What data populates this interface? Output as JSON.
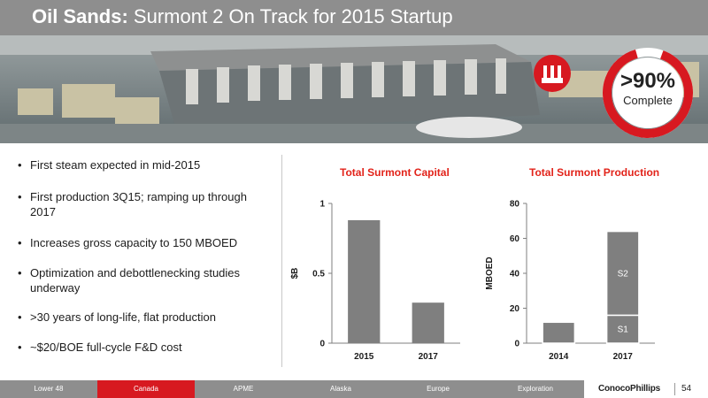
{
  "title": {
    "bold": "Oil Sands:",
    "rest": " Surmont 2 On Track for 2015 Startup"
  },
  "status": {
    "percent": ">90%",
    "label": "Complete",
    "fraction": 0.9
  },
  "bullets": [
    "First steam expected in mid-2015",
    "First production 3Q15; ramping up through 2017",
    "Increases gross capacity to 150 MBOED",
    "Optimization and debottlenecking studies underway",
    " >30 years of long-life, flat production",
    "~$20/BOE full-cycle F&D cost"
  ],
  "chart_data": [
    {
      "type": "bar",
      "title": "Total Surmont Capital",
      "ylabel": "$B",
      "categories": [
        "2015",
        "2017"
      ],
      "values": [
        0.88,
        0.29
      ],
      "ylim": [
        0,
        1
      ],
      "yticks": [
        "0",
        "0.5",
        "1"
      ],
      "ytick_values": [
        0,
        0.5,
        1
      ],
      "color": "#7f7f7f"
    },
    {
      "type": "bar",
      "title": "Total Surmont Production",
      "ylabel": "MBOED",
      "categories": [
        "2014",
        "2017"
      ],
      "series": [
        {
          "name": "S1",
          "values": [
            12,
            16
          ]
        },
        {
          "name": "S2",
          "values": [
            0,
            48
          ]
        }
      ],
      "ylim": [
        0,
        80
      ],
      "yticks": [
        "0",
        "20",
        "40",
        "60",
        "80"
      ],
      "ytick_values": [
        0,
        20,
        40,
        60,
        80
      ],
      "color": "#7f7f7f"
    }
  ],
  "footer": {
    "nav": [
      "Lower 48",
      "Canada",
      "APME",
      "Alaska",
      "Europe",
      "Exploration"
    ],
    "active": "Canada",
    "brand": "ConocoPhillips",
    "page": "54"
  },
  "colors": {
    "accent": "#d71920",
    "bar": "#7f7f7f",
    "header": "#8e8e8e"
  }
}
